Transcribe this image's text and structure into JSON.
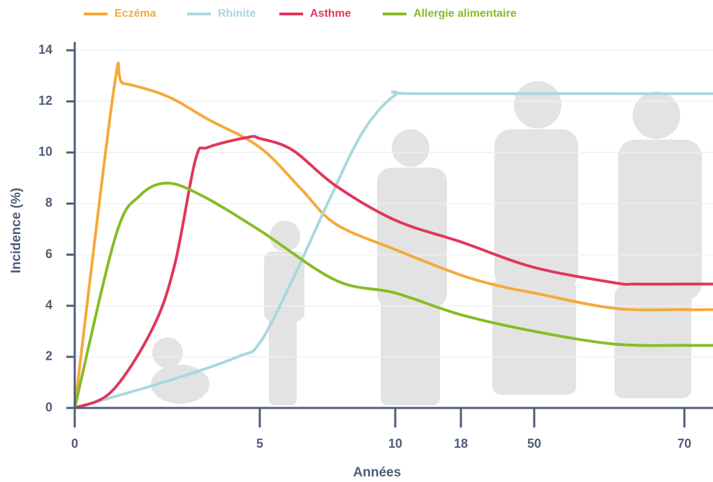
{
  "chart_data": {
    "type": "line",
    "x_label": "Années",
    "y_label": "Incidence (%)",
    "xlim": [
      0,
      74
    ],
    "xticks": [
      0,
      5,
      10,
      18,
      50,
      70
    ],
    "ylim": [
      0,
      14
    ],
    "yticks": [
      0,
      2,
      4,
      6,
      8,
      10,
      12,
      14
    ],
    "grid": true,
    "series": [
      {
        "name": "Eczéma",
        "color": "#f5a93a",
        "x": [
          0,
          1.06,
          1.32,
          2.5,
          3.6,
          5,
          6.5,
          7.8,
          10,
          18,
          36,
          50,
          60.7,
          70,
          74
        ],
        "values": [
          0,
          12.5,
          12.7,
          12.2,
          11.3,
          10.2,
          8.6,
          7.2,
          6.2,
          5.2,
          4.75,
          4.5,
          3.9,
          3.85,
          3.85
        ]
      },
      {
        "name": "Rhinite",
        "color": "#a8d8de",
        "x": [
          0,
          2.5,
          4.4,
          5,
          6.2,
          7.5,
          8.8,
          10,
          12.9,
          70,
          74
        ],
        "values": [
          0,
          1.05,
          2.0,
          2.55,
          5.0,
          8.0,
          10.8,
          12.25,
          12.3,
          12.3,
          12.3
        ]
      },
      {
        "name": "Asthme",
        "color": "#e0365a",
        "x": [
          0,
          1,
          2.1,
          2.7,
          3.26,
          3.6,
          4.7,
          5,
          6.2,
          7.8,
          10,
          18,
          50,
          60.7,
          63.5,
          70,
          74
        ],
        "values": [
          0,
          0.65,
          3.1,
          5.6,
          9.7,
          10.2,
          10.6,
          10.55,
          10.1,
          8.7,
          7.35,
          6.5,
          5.5,
          4.9,
          4.85,
          4.85,
          4.85
        ]
      },
      {
        "name": "Allergie alimentaire",
        "color": "#86bc25",
        "x": [
          0,
          1.1,
          1.75,
          2.5,
          3.45,
          5,
          7.8,
          10,
          18,
          50,
          60.7,
          70,
          74
        ],
        "values": [
          0,
          6.7,
          8.3,
          8.8,
          8.3,
          6.95,
          5.0,
          4.5,
          3.65,
          3.0,
          2.5,
          2.45,
          2.45
        ]
      }
    ]
  }
}
